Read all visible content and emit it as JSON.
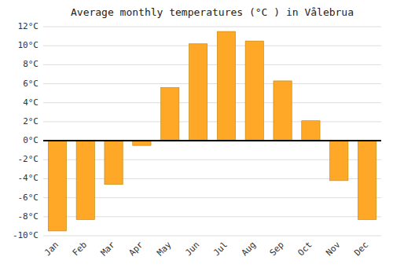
{
  "chart_data": {
    "type": "bar",
    "title": "Average monthly temperatures (°C ) in Vålebrua",
    "categories": [
      "Jan",
      "Feb",
      "Mar",
      "Apr",
      "May",
      "Jun",
      "Jul",
      "Aug",
      "Sep",
      "Oct",
      "Nov",
      "Dec"
    ],
    "values": [
      -9.5,
      -8.3,
      -4.6,
      -0.5,
      5.6,
      10.2,
      11.5,
      10.5,
      6.3,
      2.1,
      -4.2,
      -8.3
    ],
    "color": "#FFA726",
    "ylim": [
      -10,
      12
    ],
    "yticks": [
      {
        "value": -10,
        "label": "-10°C"
      },
      {
        "value": -8,
        "label": "-8°C"
      },
      {
        "value": -6,
        "label": "-6°C"
      },
      {
        "value": -4,
        "label": "-4°C"
      },
      {
        "value": -2,
        "label": "-2°C"
      },
      {
        "value": 0,
        "label": "0°C"
      },
      {
        "value": 2,
        "label": "2°C"
      },
      {
        "value": 4,
        "label": "4°C"
      },
      {
        "value": 6,
        "label": "6°C"
      },
      {
        "value": 8,
        "label": "8°C"
      },
      {
        "value": 10,
        "label": "10°C"
      },
      {
        "value": 12,
        "label": "12°C"
      }
    ],
    "grid": true
  }
}
